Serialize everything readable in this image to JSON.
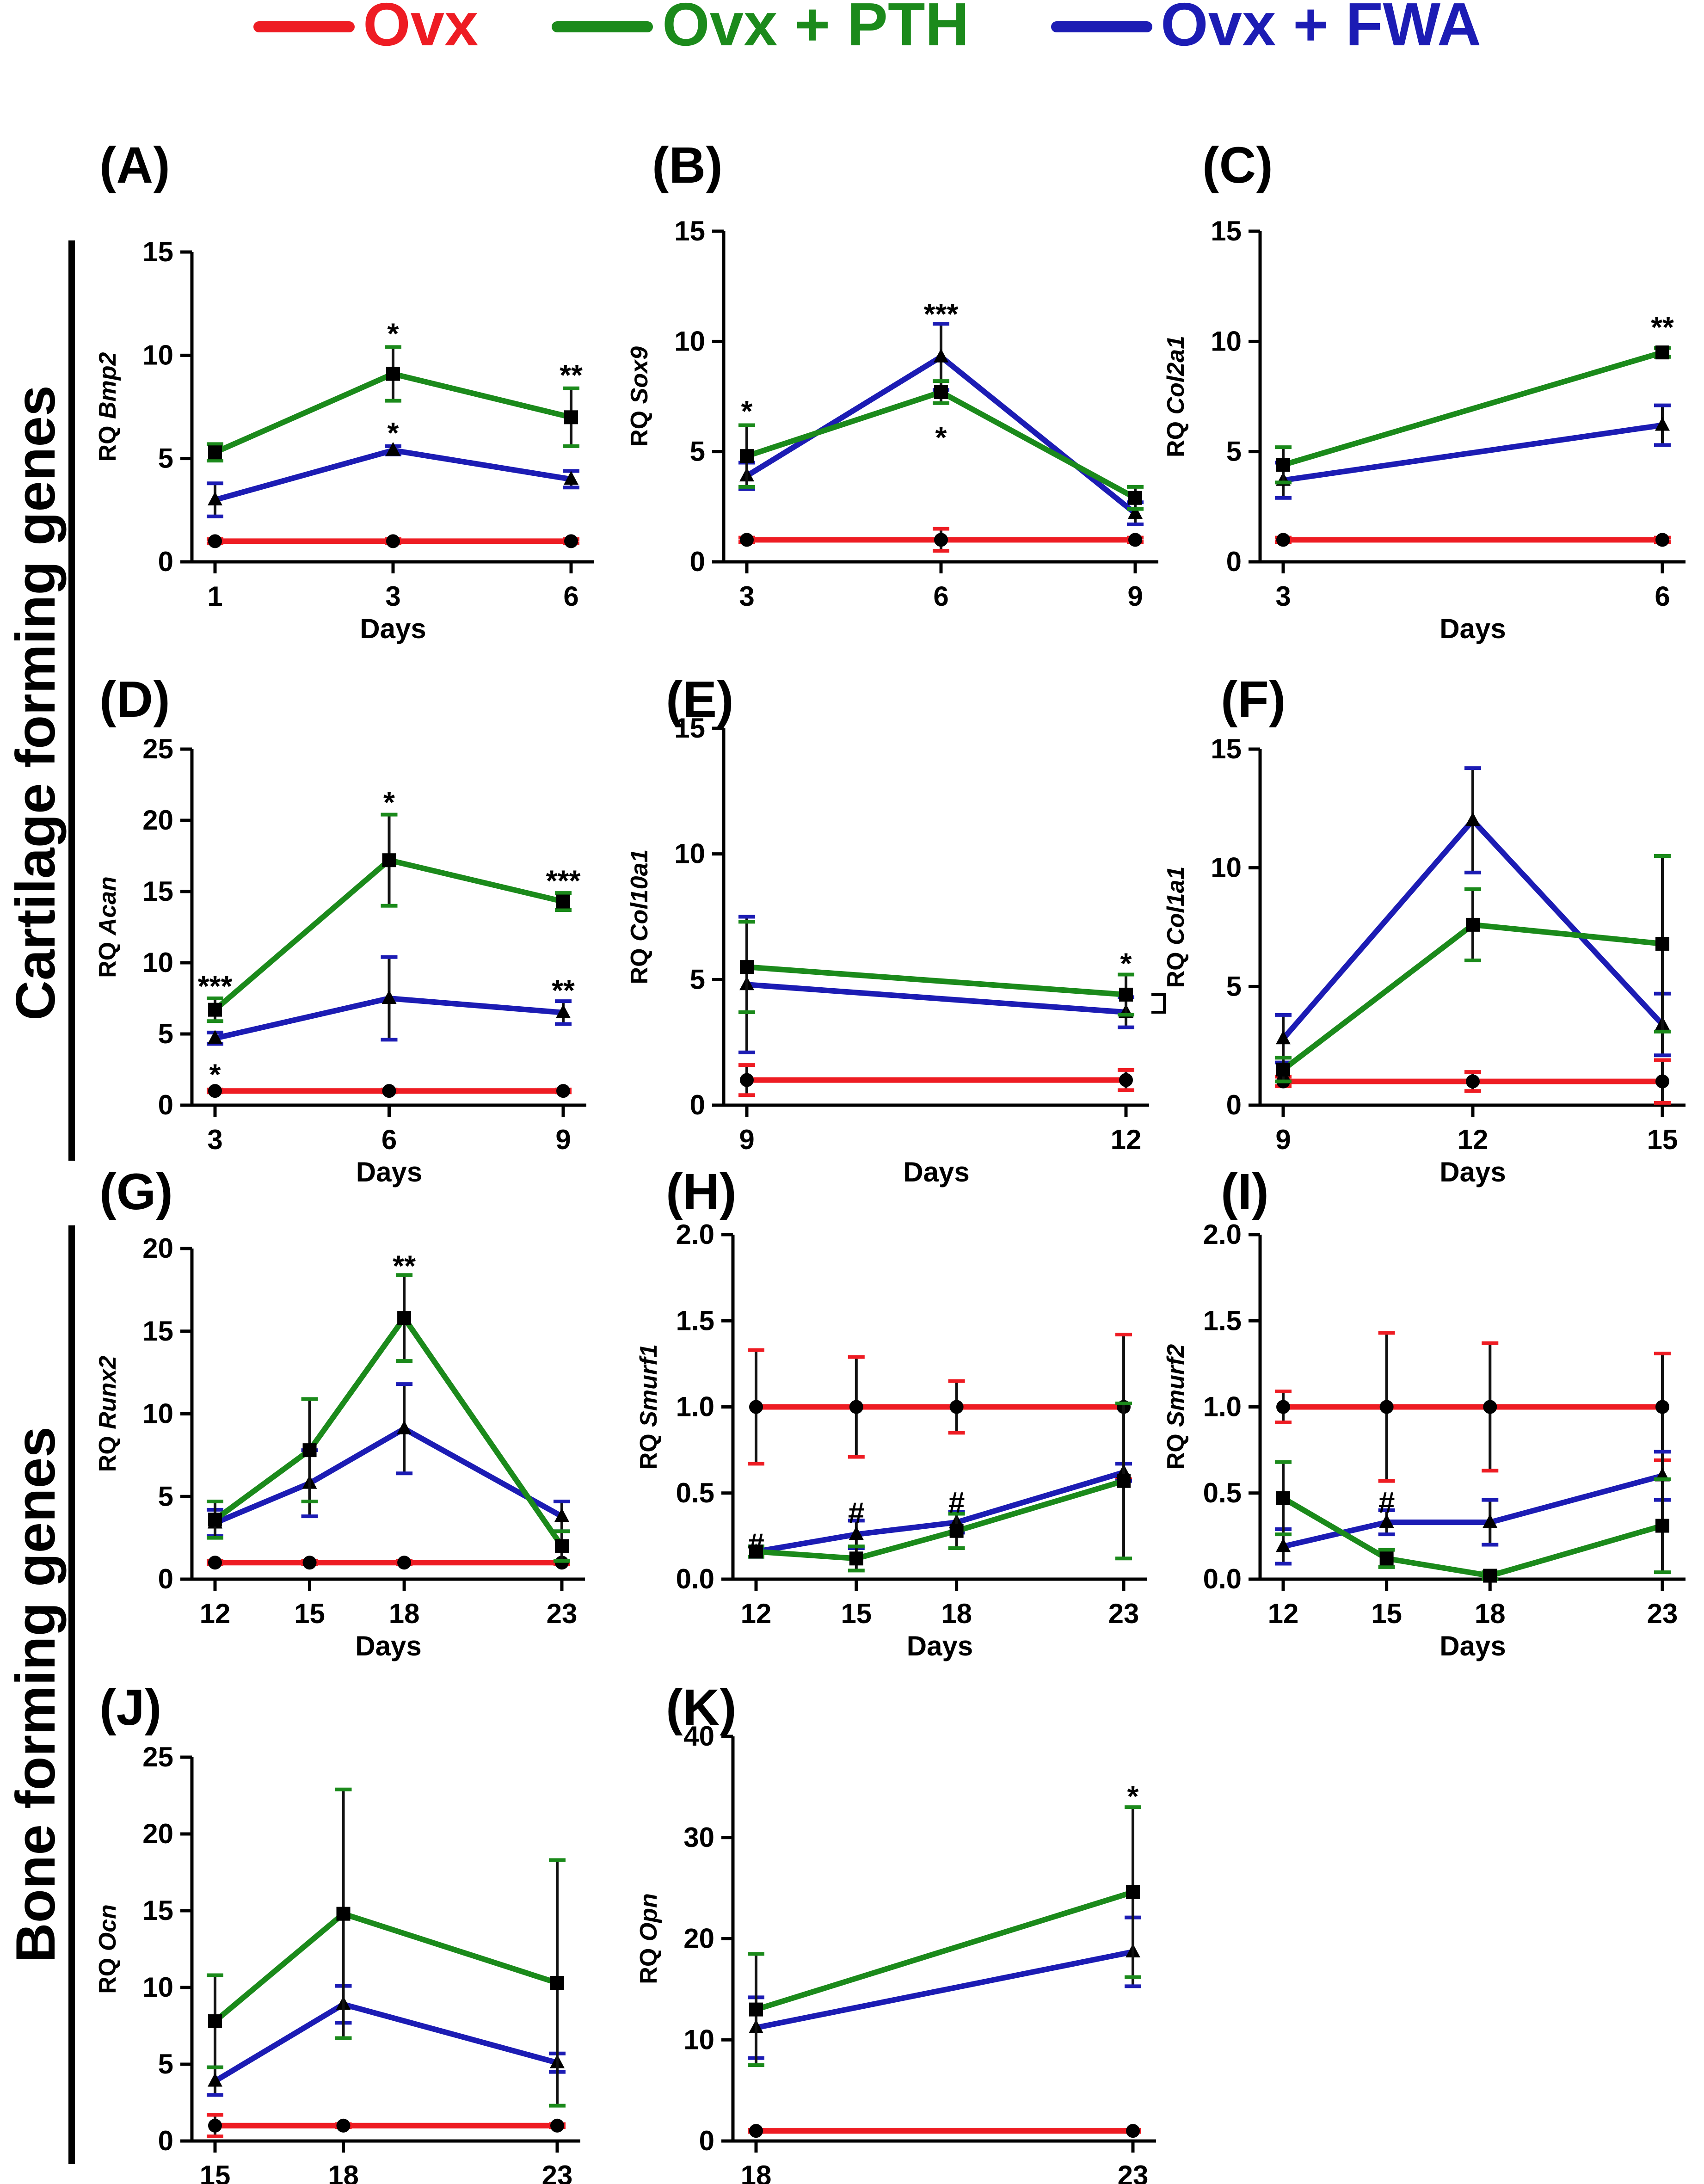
{
  "legend": [
    {
      "name": "Ovx",
      "color": "#ee1c23"
    },
    {
      "name": "Ovx + PTH",
      "color": "#1b8a1b"
    },
    {
      "name": "Ovx + FWA",
      "color": "#1c1cb4"
    }
  ],
  "groups": [
    {
      "label": "Cartilage forming genes"
    },
    {
      "label": "Bone forming genes"
    }
  ],
  "chart_data": [
    {
      "type": "line",
      "id": "A",
      "panel_label": "(A)",
      "ylabel_prefix": "RQ",
      "gene": "Bmp2",
      "xlabel": "Days",
      "x": [
        "1",
        "3",
        "6"
      ],
      "ylim": [
        0,
        15
      ],
      "yticks": [
        "0",
        "5",
        "10",
        "15"
      ],
      "series": [
        {
          "name": "Ovx",
          "values": [
            1,
            1,
            1
          ],
          "err": [
            0.1,
            0.1,
            0.1
          ]
        },
        {
          "name": "Ovx + PTH",
          "values": [
            5.3,
            9.1,
            7.0
          ],
          "err": [
            0.4,
            1.3,
            1.4
          ]
        },
        {
          "name": "Ovx + FWA",
          "values": [
            3.0,
            5.4,
            4.0
          ],
          "err": [
            0.8,
            0.2,
            0.4
          ]
        }
      ],
      "annotations": [
        {
          "text": "*",
          "x": "3",
          "y": 11.0
        },
        {
          "text": "*",
          "x": "3",
          "y": 6.2
        },
        {
          "text": "**",
          "x": "6",
          "y": 9.0
        }
      ]
    },
    {
      "type": "line",
      "id": "B",
      "panel_label": "(B)",
      "ylabel_prefix": "RQ",
      "gene": "Sox9",
      "xlabel": "",
      "x": [
        "3",
        "6",
        "9"
      ],
      "ylim": [
        0,
        15
      ],
      "yticks": [
        "0",
        "5",
        "10",
        "15"
      ],
      "series": [
        {
          "name": "Ovx",
          "values": [
            1,
            1,
            1
          ],
          "err": [
            0.1,
            0.5,
            0.1
          ]
        },
        {
          "name": "Ovx + PTH",
          "values": [
            4.8,
            7.7,
            2.9
          ],
          "err": [
            1.4,
            0.5,
            0.5
          ]
        },
        {
          "name": "Ovx + FWA",
          "values": [
            3.9,
            9.3,
            2.2
          ],
          "err": [
            0.6,
            1.5,
            0.5
          ]
        }
      ],
      "annotations": [
        {
          "text": "*",
          "x": "3",
          "y": 6.8
        },
        {
          "text": "***",
          "x": "6",
          "y": 11.2
        },
        {
          "text": "*",
          "x": "6",
          "y": 5.6
        }
      ]
    },
    {
      "type": "line",
      "id": "C",
      "panel_label": "(C)",
      "ylabel_prefix": "RQ",
      "gene": "Col2a1",
      "xlabel": "Days",
      "x": [
        "3",
        "6"
      ],
      "ylim": [
        0,
        15
      ],
      "yticks": [
        "0",
        "5",
        "10",
        "15"
      ],
      "series": [
        {
          "name": "Ovx",
          "values": [
            1,
            1
          ],
          "err": [
            0.1,
            0.1
          ]
        },
        {
          "name": "Ovx + PTH",
          "values": [
            4.4,
            9.5
          ],
          "err": [
            0.8,
            0.2
          ]
        },
        {
          "name": "Ovx + FWA",
          "values": [
            3.7,
            6.2
          ],
          "err": [
            0.8,
            0.9
          ]
        }
      ],
      "annotations": [
        {
          "text": "**",
          "x": "6",
          "y": 10.6
        }
      ]
    },
    {
      "type": "line",
      "id": "D",
      "panel_label": "(D)",
      "ylabel_prefix": "RQ",
      "gene": "Acan",
      "xlabel": "Days",
      "x": [
        "3",
        "6",
        "9"
      ],
      "ylim": [
        0,
        25
      ],
      "yticks": [
        "0",
        "5",
        "10",
        "15",
        "20",
        "25"
      ],
      "series": [
        {
          "name": "Ovx",
          "values": [
            1,
            1,
            1
          ],
          "err": [
            0.1,
            0.1,
            0.1
          ]
        },
        {
          "name": "Ovx + PTH",
          "values": [
            6.7,
            17.2,
            14.3
          ],
          "err": [
            0.8,
            3.2,
            0.6
          ]
        },
        {
          "name": "Ovx + FWA",
          "values": [
            4.7,
            7.5,
            6.5
          ],
          "err": [
            0.4,
            2.9,
            0.8
          ]
        }
      ],
      "annotations": [
        {
          "text": "***",
          "x": "3",
          "y": 8.3
        },
        {
          "text": "*",
          "x": "3",
          "y": 2.1
        },
        {
          "text": "*",
          "x": "6",
          "y": 21.2
        },
        {
          "text": "***",
          "x": "9",
          "y": 15.7
        },
        {
          "text": "**",
          "x": "9",
          "y": 8.0
        }
      ]
    },
    {
      "type": "line",
      "id": "E",
      "panel_label": "(E)",
      "ylabel_prefix": "RQ",
      "gene": "Col10a1",
      "xlabel": "Days",
      "x": [
        "9",
        "12"
      ],
      "ylim": [
        0,
        15
      ],
      "yticks": [
        "0",
        "5",
        "10",
        "15"
      ],
      "series": [
        {
          "name": "Ovx",
          "values": [
            1,
            1
          ],
          "err": [
            0.6,
            0.4
          ]
        },
        {
          "name": "Ovx + PTH",
          "values": [
            5.5,
            4.4
          ],
          "err": [
            1.8,
            0.8
          ]
        },
        {
          "name": "Ovx + FWA",
          "values": [
            4.8,
            3.7
          ],
          "err": [
            2.7,
            0.6
          ]
        }
      ],
      "annotations": [
        {
          "text": "*",
          "x": "12",
          "y": 5.6
        }
      ]
    },
    {
      "type": "line",
      "id": "F",
      "panel_label": "(F)",
      "ylabel_prefix": "RQ",
      "gene": "Col1a1",
      "xlabel": "Days",
      "x": [
        "9",
        "12",
        "15"
      ],
      "ylim": [
        0,
        15
      ],
      "yticks": [
        "0",
        "5",
        "10",
        "15"
      ],
      "series": [
        {
          "name": "Ovx",
          "values": [
            1,
            1,
            1
          ],
          "err": [
            0.2,
            0.4,
            0.9
          ]
        },
        {
          "name": "Ovx + PTH",
          "values": [
            1.5,
            7.6,
            6.8
          ],
          "err": [
            0.5,
            1.5,
            3.7
          ]
        },
        {
          "name": "Ovx + FWA",
          "values": [
            2.8,
            12.0,
            3.4
          ],
          "err": [
            1.0,
            2.2,
            1.3
          ]
        }
      ],
      "annotations": []
    },
    {
      "type": "line",
      "id": "G",
      "panel_label": "(G)",
      "ylabel_prefix": "RQ",
      "gene": "Runx2",
      "xlabel": "Days",
      "x": [
        "12",
        "15",
        "18",
        "23"
      ],
      "x_values": [
        12,
        15,
        18,
        23
      ],
      "ylim": [
        0,
        20
      ],
      "yticks": [
        "0",
        "5",
        "10",
        "15",
        "20"
      ],
      "series": [
        {
          "name": "Ovx",
          "values": [
            1,
            1,
            1,
            1
          ],
          "err": [
            0.1,
            0.1,
            0.1,
            0.1
          ]
        },
        {
          "name": "Ovx + PTH",
          "values": [
            3.6,
            7.8,
            15.8,
            2.0
          ],
          "err": [
            1.1,
            3.1,
            2.6,
            0.9
          ]
        },
        {
          "name": "Ovx + FWA",
          "values": [
            3.4,
            5.8,
            9.1,
            3.8
          ],
          "err": [
            0.8,
            2.0,
            2.7,
            0.9
          ]
        }
      ],
      "annotations": [
        {
          "text": "**",
          "x": "18",
          "y": 18.9
        }
      ]
    },
    {
      "type": "line",
      "id": "H",
      "panel_label": "(H)",
      "ylabel_prefix": "RQ",
      "gene": "Smurf1",
      "xlabel": "Days",
      "x": [
        "12",
        "15",
        "18",
        "23"
      ],
      "x_values": [
        12,
        15,
        18,
        23
      ],
      "ylim": [
        0,
        2.0
      ],
      "yticks": [
        "0.0",
        "0.5",
        "1.0",
        "1.5",
        "2.0"
      ],
      "series": [
        {
          "name": "Ovx",
          "values": [
            1.0,
            1.0,
            1.0,
            1.0
          ],
          "err": [
            0.33,
            0.29,
            0.15,
            0.42
          ]
        },
        {
          "name": "Ovx + PTH",
          "values": [
            0.16,
            0.12,
            0.28,
            0.57
          ],
          "err": [
            0.03,
            0.07,
            0.1,
            0.45
          ]
        },
        {
          "name": "Ovx + FWA",
          "values": [
            0.16,
            0.26,
            0.33,
            0.62
          ],
          "err": [
            0.03,
            0.08,
            0.06,
            0.05
          ]
        }
      ],
      "annotations": [
        {
          "text": "#",
          "x": "12",
          "y": 0.2
        },
        {
          "text": "#",
          "x": "15",
          "y": 0.38
        },
        {
          "text": "#",
          "x": "18",
          "y": 0.44
        }
      ]
    },
    {
      "type": "line",
      "id": "I",
      "panel_label": "(I)",
      "ylabel_prefix": "RQ",
      "gene": "Smurf2",
      "xlabel": "Days",
      "x": [
        "12",
        "15",
        "18",
        "23"
      ],
      "x_values": [
        12,
        15,
        18,
        23
      ],
      "ylim": [
        0,
        2.0
      ],
      "yticks": [
        "0.0",
        "0.5",
        "1.0",
        "1.5",
        "2.0"
      ],
      "series": [
        {
          "name": "Ovx",
          "values": [
            1.0,
            1.0,
            1.0,
            1.0
          ],
          "err": [
            0.09,
            0.43,
            0.37,
            0.31
          ]
        },
        {
          "name": "Ovx + PTH",
          "values": [
            0.47,
            0.12,
            0.02,
            0.31
          ],
          "err": [
            0.21,
            0.05,
            0.02,
            0.27
          ]
        },
        {
          "name": "Ovx + FWA",
          "values": [
            0.19,
            0.33,
            0.33,
            0.6
          ],
          "err": [
            0.1,
            0.07,
            0.13,
            0.14
          ]
        }
      ],
      "annotations": [
        {
          "text": "#",
          "x": "15",
          "y": 0.44
        }
      ]
    },
    {
      "type": "line",
      "id": "J",
      "panel_label": "(J)",
      "ylabel_prefix": "RQ",
      "gene": "Ocn",
      "xlabel": "Days",
      "x": [
        "15",
        "18",
        "23"
      ],
      "x_values": [
        15,
        18,
        23
      ],
      "ylim": [
        0,
        25
      ],
      "yticks": [
        "0",
        "5",
        "10",
        "15",
        "20",
        "25"
      ],
      "series": [
        {
          "name": "Ovx",
          "values": [
            1,
            1,
            1
          ],
          "err": [
            0.7,
            0.1,
            0.1
          ]
        },
        {
          "name": "Ovx + PTH",
          "values": [
            7.8,
            14.8,
            10.3
          ],
          "err": [
            3.0,
            8.1,
            8.0
          ]
        },
        {
          "name": "Ovx + FWA",
          "values": [
            3.9,
            8.9,
            5.1
          ],
          "err": [
            0.9,
            1.2,
            0.6
          ]
        }
      ],
      "annotations": []
    },
    {
      "type": "line",
      "id": "K",
      "panel_label": "(K)",
      "ylabel_prefix": "RQ",
      "gene": "Opn",
      "xlabel": "Days",
      "x": [
        "18",
        "23"
      ],
      "ylim": [
        0,
        40
      ],
      "yticks": [
        "0",
        "10",
        "20",
        "30",
        "40"
      ],
      "series": [
        {
          "name": "Ovx",
          "values": [
            1,
            1
          ],
          "err": [
            0.1,
            0.1
          ]
        },
        {
          "name": "Ovx + PTH",
          "values": [
            13.0,
            24.6
          ],
          "err": [
            5.5,
            8.4
          ]
        },
        {
          "name": "Ovx + FWA",
          "values": [
            11.2,
            18.7
          ],
          "err": [
            3.0,
            3.4
          ]
        }
      ],
      "annotations": [
        {
          "text": "*",
          "x": "23",
          "y": 34.0
        }
      ]
    }
  ]
}
